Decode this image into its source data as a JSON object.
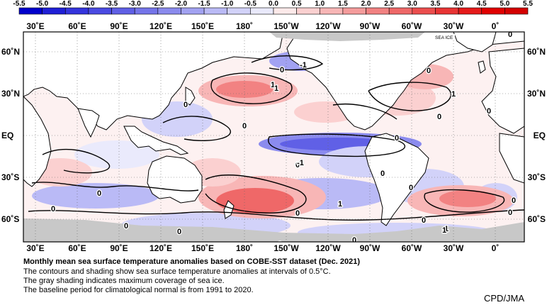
{
  "legend": {
    "ticks": [
      "-5.5",
      "-5.0",
      "-4.5",
      "-4.0",
      "-3.5",
      "-3.0",
      "-2.5",
      "-2.0",
      "-1.5",
      "-1.0",
      "-0.5",
      "0.0",
      "0.5",
      "1.0",
      "1.5",
      "2.0",
      "2.5",
      "3.0",
      "3.5",
      "4.0",
      "4.5",
      "5.0",
      "5.5"
    ],
    "colors": [
      "#0000cc",
      "#1f1fd6",
      "#3434dd",
      "#4b4be2",
      "#6060e6",
      "#7575ea",
      "#8b8bee",
      "#a2a2f2",
      "#babaf6",
      "#d2d2f9",
      "#eaeafc",
      "#fdeaea",
      "#fbd0d0",
      "#f8b6b6",
      "#f59c9c",
      "#f28282",
      "#ef6868",
      "#ec4e4e",
      "#e93434",
      "#e61a1a",
      "#e00000",
      "#d40000"
    ]
  },
  "map": {
    "lon_labels": [
      "30˚E",
      "60˚E",
      "90˚E",
      "120˚E",
      "150˚E",
      "180˚",
      "150˚W",
      "120˚W",
      "90˚W",
      "60˚W",
      "30˚W",
      "0˚"
    ],
    "lat_labels": [
      "60˚N",
      "30˚N",
      "EQ",
      "30˚S",
      "60˚S"
    ],
    "sea_ice_label": "SEA ICE",
    "contour_labels": [
      "0",
      "0",
      "1",
      "0",
      "0",
      "-1",
      "0",
      "1",
      "0",
      "1",
      "0",
      "1",
      "0",
      "0",
      "0",
      "1",
      "0",
      "0",
      "0",
      "0",
      "0",
      "0",
      "0",
      "0",
      "1",
      "0",
      "0",
      "0",
      "-1"
    ]
  },
  "caption": {
    "title": "Monthly mean sea surface temperature anomalies based on COBE-SST dataset (Dec. 2021)",
    "line1": "The contours and shading show sea surface temperature anomalies at intervals of 0.5°C.",
    "line2": "The gray shading indicates maximum coverage of sea ice.",
    "line3": "The baseline period for climatological normal is from 1991 to 2020."
  },
  "credit": "CPD/JMA"
}
